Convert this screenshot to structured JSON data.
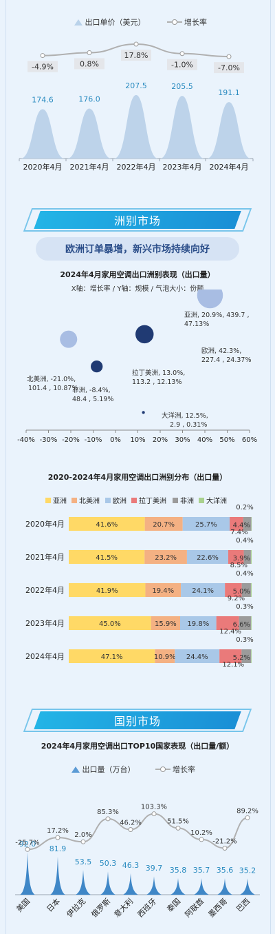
{
  "chart1": {
    "legend_price": "出口单价（美元）",
    "legend_rate": "增长率",
    "categories": [
      "2020年4月",
      "2021年4月",
      "2022年4月",
      "2023年4月",
      "2024年4月"
    ],
    "price": [
      174.6,
      176.0,
      207.5,
      205.5,
      191.1
    ],
    "price_labels": [
      "174.6",
      "176.0",
      "207.5",
      "205.5",
      "191.1"
    ],
    "rate": [
      -4.9,
      0.8,
      17.8,
      -1.0,
      -7.0
    ],
    "rate_labels": [
      "-4.9%",
      "0.8%",
      "17.8%",
      "-1.0%",
      "-7.0%"
    ]
  },
  "section_continent": "洲别市场",
  "continent_headline": "欧洲订单暴增，新兴市场持续向好",
  "bubble": {
    "title": "2024年4月家用空调出口洲别表现（出口量）",
    "subtitle": "X轴：增长率 / Y轴：规模 / 气泡大小：份额",
    "points": [
      {
        "name": "亚洲",
        "x": 20.9,
        "y": 439.7,
        "share": 47.13,
        "label1": "亚洲, 20.9%, 439.7 ,",
        "label2": "47.13%",
        "color": "#6f8fcf"
      },
      {
        "name": "欧洲",
        "x": 42.3,
        "y": 227.4,
        "share": 24.37,
        "label1": "欧洲, 42.3%,",
        "label2": "227.4 , 24.37%",
        "color": "#a8bde3"
      },
      {
        "name": "拉丁美洲",
        "x": 13.0,
        "y": 113.2,
        "share": 12.13,
        "label1": "拉丁美洲, 13.0%,",
        "label2": "113.2 , 12.13%",
        "color": "#203a73"
      },
      {
        "name": "北美洲",
        "x": -21.0,
        "y": 101.4,
        "share": 10.87,
        "label1": "北美洲, -21.0%,",
        "label2": "101.4 , 10.87%",
        "color": "#a8bde3"
      },
      {
        "name": "非洲",
        "x": -8.4,
        "y": 48.4,
        "share": 5.19,
        "label1": "非洲, -8.4%,",
        "label2": "48.4 , 5.19%",
        "color": "#203a73"
      },
      {
        "name": "大洋洲",
        "x": 12.5,
        "y": 2.9,
        "share": 0.31,
        "label1": "大洋洲, 12.5%,",
        "label2": "2.9 , 0.31%",
        "color": "#203a73"
      }
    ],
    "xticks": [
      "-40%",
      "-30%",
      "-20%",
      "-10%",
      "0%",
      "10%",
      "20%",
      "30%",
      "40%",
      "50%",
      "60%"
    ]
  },
  "stack": {
    "title": "2020-2024年4月家用空调出口洲别分布（出口量）",
    "legend": [
      {
        "name": "亚洲",
        "color": "#ffd966"
      },
      {
        "name": "北美洲",
        "color": "#f4b183"
      },
      {
        "name": "欧洲",
        "color": "#a9c8e8"
      },
      {
        "name": "拉丁美洲",
        "color": "#ea7a7a"
      },
      {
        "name": "非洲",
        "color": "#9b9b9b"
      },
      {
        "name": "大洋洲",
        "color": "#a9d18e"
      }
    ],
    "rows": [
      {
        "label": "2020年4月",
        "values": [
          41.6,
          20.7,
          25.7,
          7.4,
          4.4,
          0.2
        ],
        "labels": [
          "41.6%",
          "20.7%",
          "25.7%",
          "7.4%",
          "4.4%",
          "0.2%"
        ]
      },
      {
        "label": "2021年4月",
        "values": [
          41.5,
          23.2,
          22.6,
          8.5,
          3.9,
          0.4
        ],
        "labels": [
          "41.5%",
          "23.2%",
          "22.6%",
          "8.5%",
          "3.9%",
          "0.4%"
        ]
      },
      {
        "label": "2022年4月",
        "values": [
          41.9,
          19.4,
          24.1,
          9.2,
          5.0,
          0.4
        ],
        "labels": [
          "41.9%",
          "19.4%",
          "24.1%",
          "9.2%",
          "5.0%",
          "0.4%"
        ]
      },
      {
        "label": "2023年4月",
        "values": [
          45.0,
          15.9,
          19.8,
          12.4,
          6.6,
          0.3
        ],
        "labels": [
          "45.0%",
          "15.9%",
          "19.8%",
          "12.4%",
          "6.6%",
          "0.3%"
        ]
      },
      {
        "label": "2024年4月",
        "values": [
          47.1,
          10.9,
          24.4,
          12.1,
          5.2,
          0.3
        ],
        "labels": [
          "47.1%",
          "10.9%",
          "24.4%",
          "12.1%",
          "5.2%",
          "0.3%"
        ]
      }
    ]
  },
  "section_country": "国别市场",
  "top10": {
    "title": "2024年4月家用空调出口TOP10国家表现（出口量/额）",
    "legend_volume": "出口量（万台）",
    "legend_rate": "增长率",
    "countries": [
      "美国",
      "日本",
      "伊拉克",
      "俄罗斯",
      "意大利",
      "西班牙",
      "泰国",
      "阿联酋",
      "墨西哥",
      "巴西"
    ],
    "volume": [
      92.0,
      81.9,
      53.5,
      50.3,
      46.3,
      39.7,
      35.8,
      35.7,
      35.6,
      35.2
    ],
    "volume_labels": [
      "92.0",
      "81.9",
      "53.5",
      "50.3",
      "46.3",
      "39.7",
      "35.8",
      "35.7",
      "35.6",
      "35.2"
    ],
    "rate": [
      -25.7,
      17.2,
      2.0,
      85.3,
      46.2,
      103.3,
      51.5,
      10.2,
      -21.2,
      89.2
    ],
    "rate_labels": [
      "-25.7%",
      "17.2%",
      "2.0%",
      "85.3%",
      "46.2%",
      "103.3%",
      "51.5%",
      "10.2%",
      "-21.2%",
      "89.2%"
    ]
  },
  "chart_data": [
    {
      "type": "area",
      "title": "",
      "x": [
        "2020年4月",
        "2021年4月",
        "2022年4月",
        "2023年4月",
        "2024年4月"
      ],
      "series": [
        {
          "name": "出口单价（美元）",
          "values": [
            174.6,
            176.0,
            207.5,
            205.5,
            191.1
          ]
        },
        {
          "name": "增长率",
          "values": [
            -4.9,
            0.8,
            17.8,
            -1.0,
            -7.0
          ]
        }
      ]
    },
    {
      "type": "scatter",
      "title": "2024年4月家用空调出口洲别表现（出口量）",
      "xlim": [
        -40,
        60
      ],
      "points": [
        {
          "name": "亚洲",
          "x": 20.9,
          "y": 439.7,
          "size": 47.13
        },
        {
          "name": "欧洲",
          "x": 42.3,
          "y": 227.4,
          "size": 24.37
        },
        {
          "name": "拉丁美洲",
          "x": 13.0,
          "y": 113.2,
          "size": 12.13
        },
        {
          "name": "北美洲",
          "x": -21.0,
          "y": 101.4,
          "size": 10.87
        },
        {
          "name": "非洲",
          "x": -8.4,
          "y": 48.4,
          "size": 5.19
        },
        {
          "name": "大洋洲",
          "x": 12.5,
          "y": 2.9,
          "size": 0.31
        }
      ]
    },
    {
      "type": "bar",
      "title": "2020-2024年4月家用空调出口洲别分布（出口量）",
      "stacked": true,
      "categories": [
        "2020年4月",
        "2021年4月",
        "2022年4月",
        "2023年4月",
        "2024年4月"
      ],
      "series": [
        {
          "name": "亚洲",
          "values": [
            41.6,
            41.5,
            41.9,
            45.0,
            47.1
          ]
        },
        {
          "name": "北美洲",
          "values": [
            20.7,
            23.2,
            19.4,
            15.9,
            10.9
          ]
        },
        {
          "name": "欧洲",
          "values": [
            25.7,
            22.6,
            24.1,
            19.8,
            24.4
          ]
        },
        {
          "name": "拉丁美洲",
          "values": [
            7.4,
            8.5,
            9.2,
            12.4,
            12.1
          ]
        },
        {
          "name": "非洲",
          "values": [
            4.4,
            3.9,
            5.0,
            6.6,
            5.2
          ]
        },
        {
          "name": "大洋洲",
          "values": [
            0.2,
            0.4,
            0.4,
            0.3,
            0.3
          ]
        }
      ]
    },
    {
      "type": "area",
      "title": "2024年4月家用空调出口TOP10国家表现（出口量/额）",
      "categories": [
        "美国",
        "日本",
        "伊拉克",
        "俄罗斯",
        "意大利",
        "西班牙",
        "泰国",
        "阿联酋",
        "墨西哥",
        "巴西"
      ],
      "series": [
        {
          "name": "出口量（万台）",
          "values": [
            92.0,
            81.9,
            53.5,
            50.3,
            46.3,
            39.7,
            35.8,
            35.7,
            35.6,
            35.2
          ]
        },
        {
          "name": "增长率",
          "values": [
            -25.7,
            17.2,
            2.0,
            85.3,
            46.2,
            103.3,
            51.5,
            10.2,
            -21.2,
            89.2
          ]
        }
      ]
    }
  ]
}
